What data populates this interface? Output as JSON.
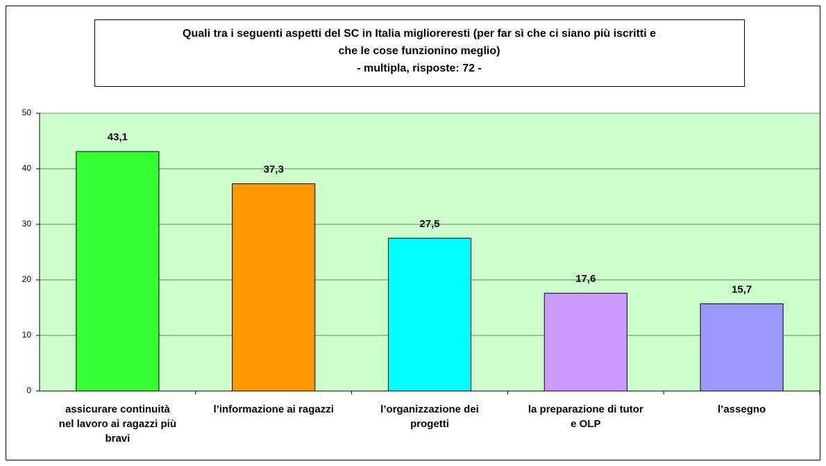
{
  "chart_data": {
    "type": "bar",
    "title": [
      "Quali tra i seguenti aspetti del SC in Italia miglioreresti (per far sì che ci siano più iscritti e",
      "che le cose funzionino meglio)",
      "- multipla, risposte: 72 -"
    ],
    "categories": [
      [
        "assicurare continuità",
        "nel lavoro ai ragazzi più",
        "bravi"
      ],
      [
        "l’informazione ai ragazzi"
      ],
      [
        "l’organizzazione dei",
        "progetti"
      ],
      [
        "la preparazione di tutor",
        "e OLP"
      ],
      [
        "l’assegno"
      ]
    ],
    "values": [
      43.1,
      37.3,
      27.5,
      17.6,
      15.7
    ],
    "value_labels": [
      "43,1",
      "37,3",
      "27,5",
      "17,6",
      "15,7"
    ],
    "colors": [
      "#33ff33",
      "#ff9900",
      "#00ffff",
      "#cc99ff",
      "#9999ff"
    ],
    "ylim": [
      0,
      50
    ],
    "yticks": [
      0,
      10,
      20,
      30,
      40,
      50
    ],
    "grid": true,
    "plot_background": "#ccffcc"
  }
}
